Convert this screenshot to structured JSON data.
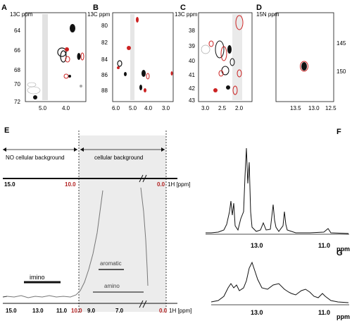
{
  "figure": {
    "colors": {
      "ink": "#111111",
      "contour_black": "#111111",
      "contour_red": "#cc2222",
      "gray": "#9a9a9a",
      "shade": "#ececec"
    },
    "panels": {
      "A": {
        "letter": "A",
        "y_title": "13C ppm",
        "y_ticks": [
          "64",
          "66",
          "68",
          "70",
          "72"
        ],
        "x_ticks": [
          "5.0",
          "4.0"
        ]
      },
      "B": {
        "letter": "B",
        "y_title": "13C ppm",
        "y_ticks": [
          "80",
          "82",
          "84",
          "86",
          "88"
        ],
        "x_ticks": [
          "6.0",
          "5.0",
          "4.0",
          "3.0"
        ]
      },
      "C": {
        "letter": "C",
        "y_title": "13C ppm",
        "y_ticks": [
          "38",
          "39",
          "40",
          "41",
          "42",
          "43"
        ],
        "x_ticks": [
          "3.0",
          "2.5",
          "2.0"
        ]
      },
      "D": {
        "letter": "D",
        "y_title": "15N ppm",
        "y_ticks": [
          "145",
          "150"
        ],
        "x_ticks": [
          "13.5",
          "13.0",
          "12.5"
        ]
      },
      "E": {
        "letter": "E",
        "no_bg": "NO cellular background",
        "bg": "cellular background",
        "top_axis": {
          "l15": "15.0",
          "l10": "10.0",
          "l0": "0.0",
          "unit": "1H [ppm]"
        },
        "imino": "imino",
        "aromatic": "aromatic",
        "amino": "amino",
        "bottom_ticks": [
          "15.0",
          "13.0",
          "11.0",
          "10.0",
          "9.0",
          "7.0",
          "0.0"
        ],
        "bottom_unit": "1H [ppm]"
      },
      "F": {
        "letter": "F",
        "x_ticks": [
          "13.0",
          "11.0"
        ],
        "unit": "ppm"
      },
      "G": {
        "letter": "G",
        "x_ticks": [
          "13.0",
          "11.0"
        ],
        "unit": "ppm"
      }
    }
  }
}
